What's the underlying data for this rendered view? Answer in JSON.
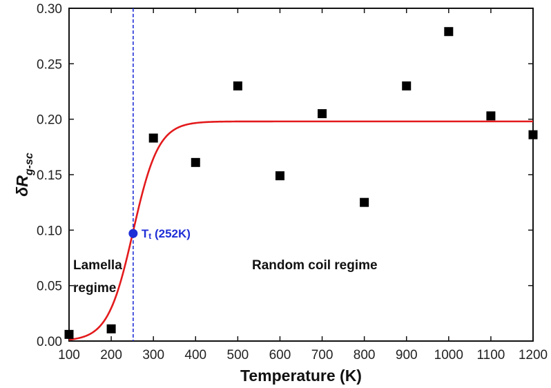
{
  "chart_data": {
    "type": "scatter",
    "xlabel": "Temperature (K)",
    "ylabel_main": "δR",
    "ylabel_sub": "g-sc",
    "xlim": [
      100,
      1200
    ],
    "ylim": [
      0.0,
      0.3
    ],
    "xticks": [
      100,
      200,
      300,
      400,
      500,
      600,
      700,
      800,
      900,
      1000,
      1100,
      1200
    ],
    "xtick_labels": [
      "100",
      "200",
      "300",
      "400",
      "500",
      "600",
      "700",
      "800",
      "900",
      "1000",
      "1100",
      "1200"
    ],
    "yticks": [
      0.0,
      0.05,
      0.1,
      0.15,
      0.2,
      0.25,
      0.3
    ],
    "ytick_labels": [
      "0.00",
      "0.05",
      "0.10",
      "0.15",
      "0.20",
      "0.25",
      "0.30"
    ],
    "grid": false,
    "series": [
      {
        "marker": "square",
        "color": "#000000",
        "x": [
          100,
          200,
          300,
          400,
          500,
          600,
          700,
          800,
          900,
          1000,
          1100,
          1200
        ],
        "y": [
          0.006,
          0.011,
          0.183,
          0.161,
          0.23,
          0.149,
          0.205,
          0.125,
          0.23,
          0.279,
          0.203,
          0.186
        ]
      }
    ],
    "fit_curve": {
      "type": "sigmoid",
      "color": "#e31a1c",
      "y_max": 0.198,
      "x_mid": 252,
      "width": 30
    },
    "transition": {
      "x": 252,
      "y": 0.097,
      "color": "#1f2fd6",
      "label_main": "T",
      "label_sub": "t",
      "label_rest": " (252K)"
    },
    "annotations": {
      "lamella_line1": "Lamella",
      "lamella_line2": "regime",
      "random_coil": "Random coil regime"
    }
  }
}
